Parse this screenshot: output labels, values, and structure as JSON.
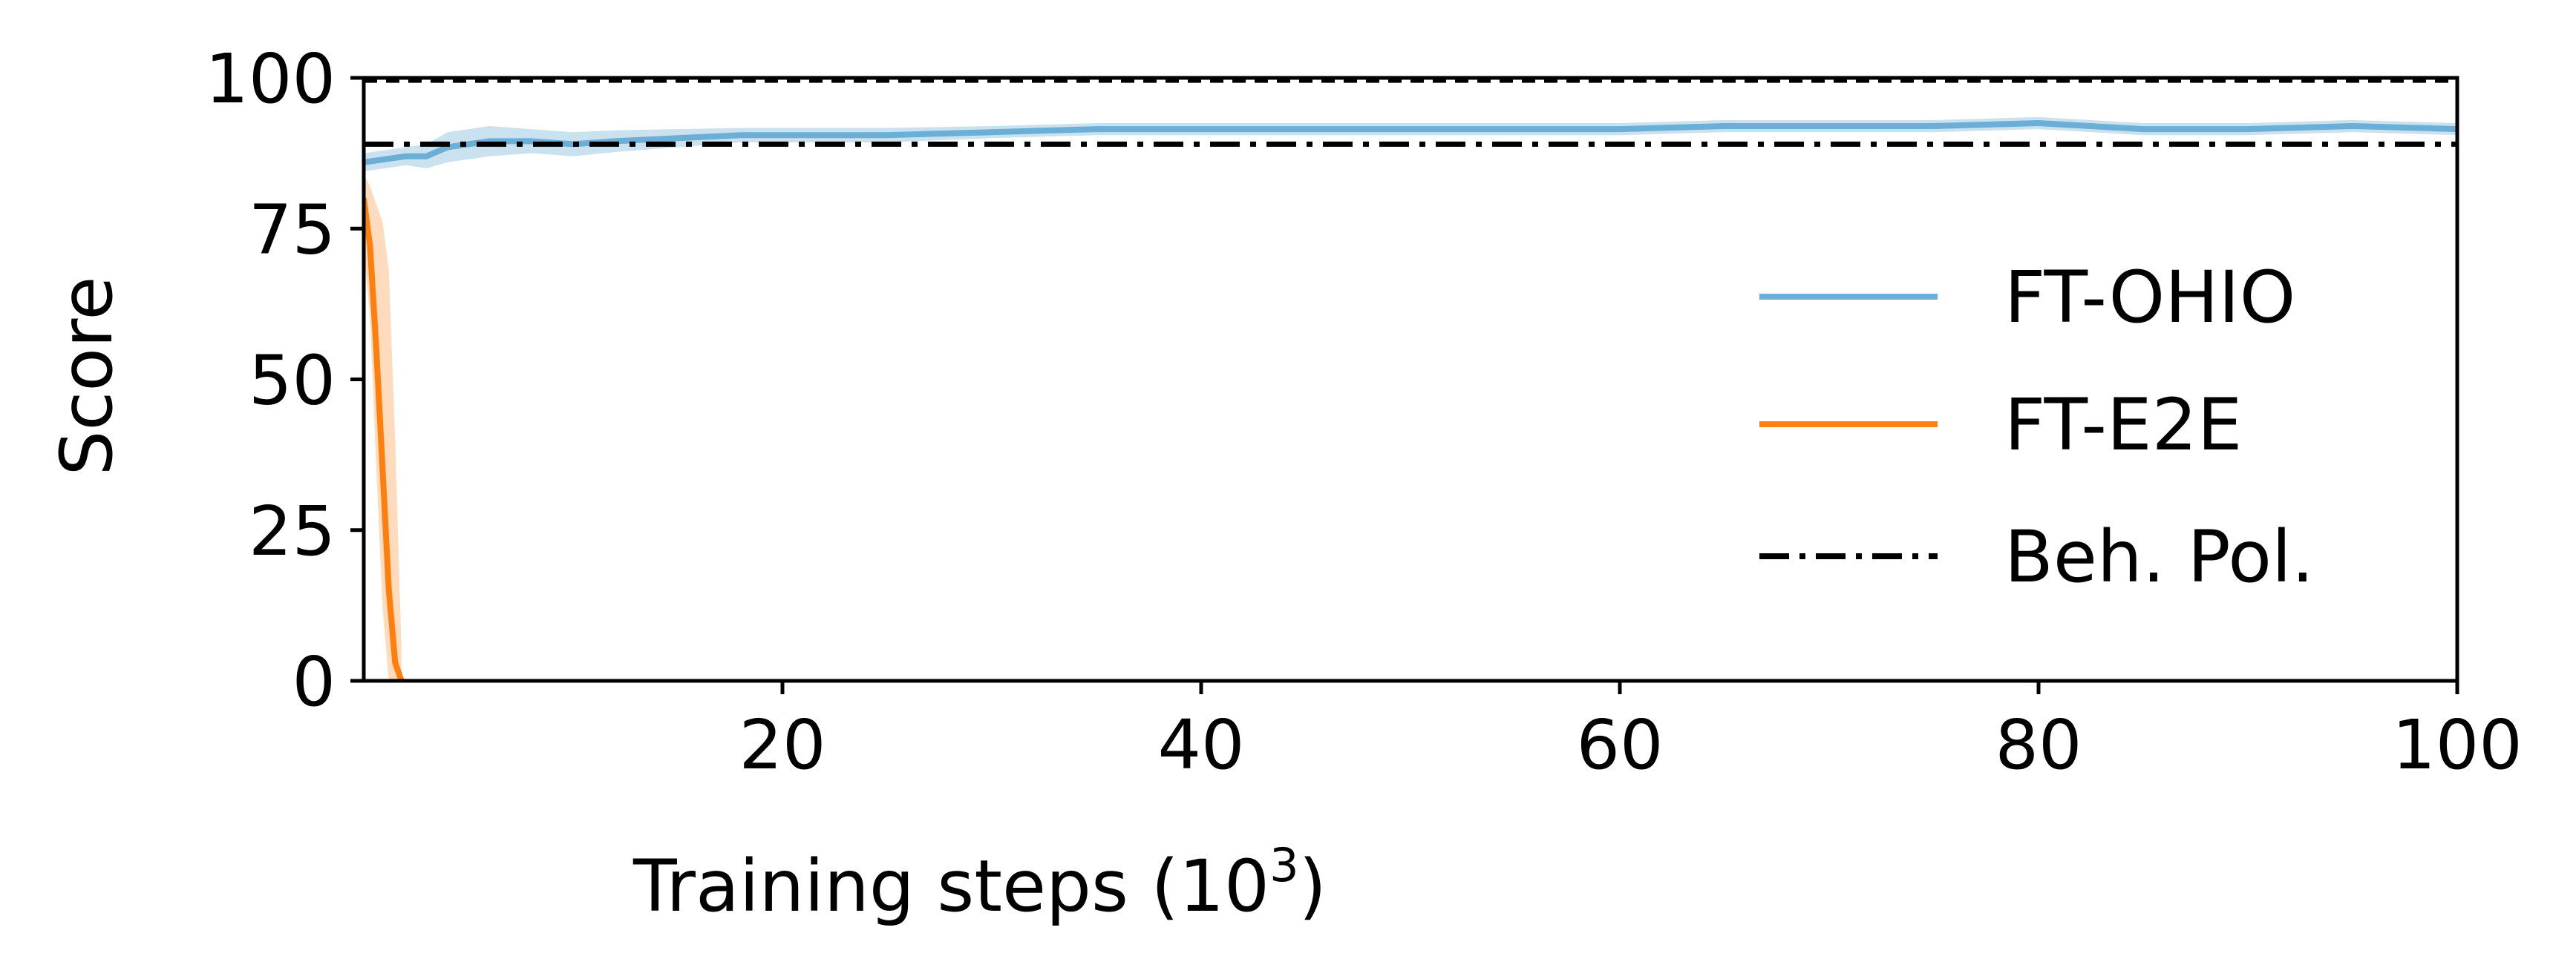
{
  "chart_data": {
    "type": "line",
    "xlabel": "Training steps (10",
    "xlabel_sup": "3",
    "xlabel_suffix": ")",
    "ylabel": "Score",
    "xlim": [
      0,
      100
    ],
    "ylim": [
      0,
      100
    ],
    "xticks": [
      20,
      40,
      60,
      80,
      100
    ],
    "yticks": [
      0,
      25,
      50,
      75,
      100
    ],
    "grid": false,
    "legend_position": "center-right",
    "series": [
      {
        "name": "FT-OHIO",
        "color": "#6baed6",
        "band_color": "#9ecae1",
        "x": [
          0,
          1,
          2,
          3,
          4,
          5,
          6,
          8,
          10,
          12,
          15,
          18,
          20,
          25,
          30,
          35,
          40,
          45,
          50,
          55,
          60,
          65,
          70,
          75,
          80,
          85,
          90,
          95,
          100
        ],
        "y": [
          86,
          86.5,
          87,
          87,
          88.5,
          89,
          89.5,
          89.5,
          89,
          89.5,
          90,
          90.5,
          90.5,
          90.5,
          91,
          91.5,
          91.5,
          91.5,
          91.5,
          91.5,
          91.5,
          92,
          92,
          92,
          92.5,
          91.5,
          91.5,
          92,
          91.5
        ],
        "band": [
          1.5,
          1.5,
          1.5,
          2,
          2.5,
          2.5,
          2.5,
          2,
          2,
          1.8,
          1.5,
          1.2,
          1.2,
          1.2,
          1,
          1,
          1,
          1,
          1,
          1,
          1,
          1,
          1,
          1,
          1,
          1,
          1,
          1,
          1
        ]
      },
      {
        "name": "FT-E2E",
        "color": "#ff7f0e",
        "band_color": "#fdbe85",
        "x": [
          0,
          0.3,
          0.6,
          0.9,
          1.2,
          1.5,
          1.8
        ],
        "y": [
          80,
          72,
          55,
          35,
          15,
          3,
          0
        ],
        "upper": [
          84,
          82,
          79,
          76,
          68,
          40,
          5
        ],
        "lower": [
          72,
          60,
          35,
          12,
          0,
          0,
          0
        ]
      },
      {
        "name": "Beh. Pol.",
        "color": "#000000",
        "style": "dashdot",
        "x": [
          0,
          100
        ],
        "y": [
          89,
          89
        ]
      }
    ],
    "reference_line": {
      "y": 99.5,
      "style": "dashed",
      "color": "#000000"
    }
  }
}
